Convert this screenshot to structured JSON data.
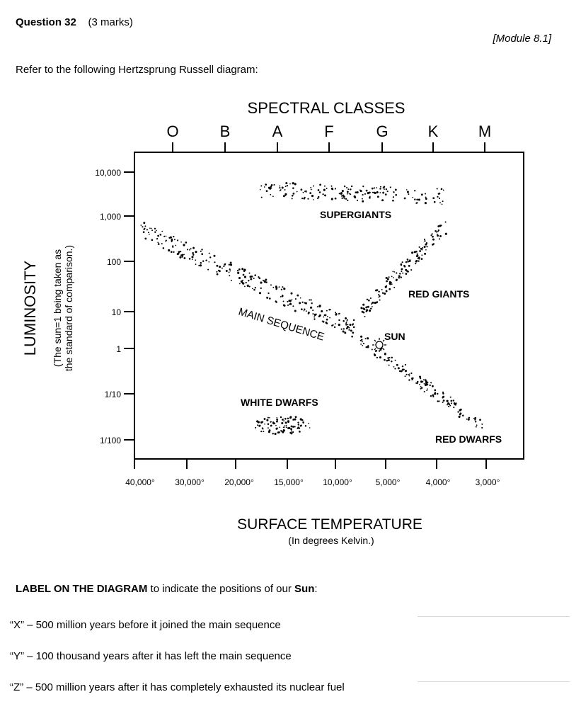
{
  "question": {
    "number": "Question 32",
    "marks": "(3 marks)",
    "module": "[Module 8.1]"
  },
  "intro": "Refer to the following Hertzsprung Russell diagram:",
  "diagram": {
    "top_title": "SPECTRAL CLASSES",
    "spectral_classes": [
      "O",
      "B",
      "A",
      "F",
      "G",
      "K",
      "M"
    ],
    "y_title": "LUMINOSITY",
    "y_note_1": "(The sun=1 being taken as",
    "y_note_2": "the standard of comparison.)",
    "y_ticks": [
      "10,000",
      "1,000",
      "100",
      "10",
      "1",
      "1/10",
      "1/100"
    ],
    "x_ticks": [
      "40,000°",
      "30,000°",
      "20,000°",
      "15,000°",
      "10,000°",
      "5,000°",
      "4,000°",
      "3,000°"
    ],
    "x_title": "SURFACE TEMPERATURE",
    "x_subtitle": "(In degrees Kelvin.)",
    "regions": {
      "supergiants": "SUPERGIANTS",
      "red_giants": "RED GIANTS",
      "main_sequence": "MAIN SEQUENCE",
      "sun": "SUN",
      "white_dwarfs": "WHITE DWARFS",
      "red_dwarfs": "RED DWARFS"
    }
  },
  "task": {
    "prefix": "LABEL ON THE DIAGRAM",
    "middle": " to indicate the positions of our ",
    "sun_word": "Sun",
    "suffix": ":"
  },
  "items": [
    "“X” – 500 million years before it joined the main sequence",
    "“Y” – 100 thousand years after it has left the main sequence",
    "“Z” – 500 million years after it has completely exhausted its nuclear fuel"
  ]
}
